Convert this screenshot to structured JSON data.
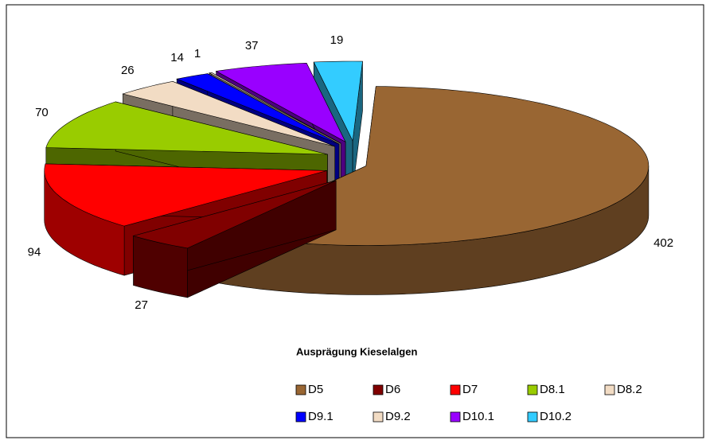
{
  "chart_data": {
    "type": "pie3d",
    "legend_title": "Ausprägung Kieselalgen",
    "categories": [
      "D5",
      "D6",
      "D7",
      "D8.1",
      "D8.2",
      "D9.1",
      "D9.2",
      "D10.1",
      "D10.2"
    ],
    "values": [
      402,
      27,
      94,
      70,
      26,
      14,
      1,
      37,
      19
    ],
    "colors": [
      "#996633",
      "#800000",
      "#ff0000",
      "#99cc00",
      "#f2dcc4",
      "#0000ff",
      "#f2dcc4",
      "#9900ff",
      "#33ccff"
    ],
    "legend": "bottom-right"
  }
}
